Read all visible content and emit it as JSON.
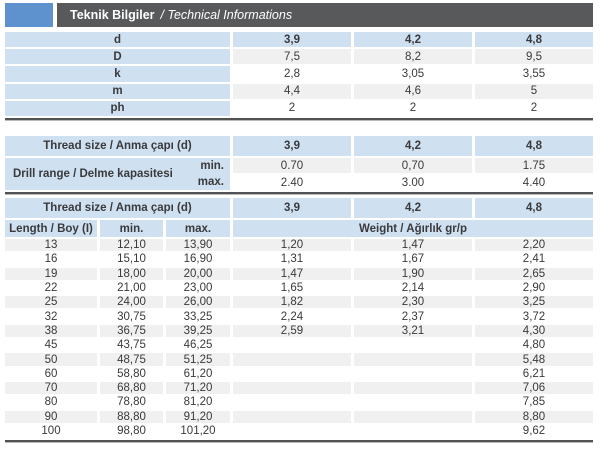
{
  "header": {
    "title_tr": "Teknik Bilgiler",
    "title_en": "/ Technical Informations"
  },
  "colors": {
    "accent_blue": "#5E92CE",
    "header_bar_gray": "#58595B",
    "row_blue": "#CFE0F1",
    "row_stripe_gray": "#F0F0F1"
  },
  "spec_table": {
    "header_label": "d",
    "header_values": [
      "3,9",
      "4,2",
      "4,8"
    ],
    "rows": [
      {
        "label": "D",
        "v0": "7,5",
        "v1": "8,2",
        "v2": "9,5"
      },
      {
        "label": "k",
        "v0": "2,8",
        "v1": "3,05",
        "v2": "3,55"
      },
      {
        "label": "m",
        "v0": "4,4",
        "v1": "4,6",
        "v2": "5"
      },
      {
        "label": "ph",
        "v0": "2",
        "v1": "2",
        "v2": "2"
      }
    ]
  },
  "drill_table": {
    "thread_label": "Thread size / Anma çapı (d)",
    "thread_values": [
      "3,9",
      "4,2",
      "4,8"
    ],
    "range_label": "Drill range / Delme kapasitesi",
    "min_label": "min.",
    "max_label": "max.",
    "min": {
      "v0": "0.70",
      "v1": "0,70",
      "v2": "1.75"
    },
    "max": {
      "v0": "2.40",
      "v1": "3.00",
      "v2": "4.40"
    }
  },
  "length_table": {
    "thread_label": "Thread size / Anma çapı (d)",
    "thread_values": [
      "3,9",
      "4,2",
      "4,8"
    ],
    "length_header": "Length / Boy (I)",
    "min_header": "min.",
    "max_header": "max.",
    "weight_header": "Weight / Ağırlık gr/p",
    "rows": [
      {
        "length": "13",
        "min": "12,10",
        "max": "13,90",
        "w0": "1,20",
        "w1": "1,47",
        "w2": "2,20"
      },
      {
        "length": "16",
        "min": "15,10",
        "max": "16,90",
        "w0": "1,31",
        "w1": "1,67",
        "w2": "2,41"
      },
      {
        "length": "19",
        "min": "18,00",
        "max": "20,00",
        "w0": "1,47",
        "w1": "1,90",
        "w2": "2,65"
      },
      {
        "length": "22",
        "min": "21,00",
        "max": "23,00",
        "w0": "1,65",
        "w1": "2,14",
        "w2": "2,90"
      },
      {
        "length": "25",
        "min": "24,00",
        "max": "26,00",
        "w0": "1,82",
        "w1": "2,30",
        "w2": "3,25"
      },
      {
        "length": "32",
        "min": "30,75",
        "max": "33,25",
        "w0": "2,24",
        "w1": "2,37",
        "w2": "3,72"
      },
      {
        "length": "38",
        "min": "36,75",
        "max": "39,25",
        "w0": "2,59",
        "w1": "3,21",
        "w2": "4,30"
      },
      {
        "length": "45",
        "min": "43,75",
        "max": "46,25",
        "w0": "",
        "w1": "",
        "w2": "4,80"
      },
      {
        "length": "50",
        "min": "48,75",
        "max": "51,25",
        "w0": "",
        "w1": "",
        "w2": "5,48"
      },
      {
        "length": "60",
        "min": "58,80",
        "max": "61,20",
        "w0": "",
        "w1": "",
        "w2": "6,21"
      },
      {
        "length": "70",
        "min": "68,80",
        "max": "71,20",
        "w0": "",
        "w1": "",
        "w2": "7,06"
      },
      {
        "length": "80",
        "min": "78,80",
        "max": "81,20",
        "w0": "",
        "w1": "",
        "w2": "7,85"
      },
      {
        "length": "90",
        "min": "88,80",
        "max": "91,20",
        "w0": "",
        "w1": "",
        "w2": "8,80"
      },
      {
        "length": "100",
        "min": "98,80",
        "max": "101,20",
        "w0": "",
        "w1": "",
        "w2": "9,62"
      }
    ]
  }
}
